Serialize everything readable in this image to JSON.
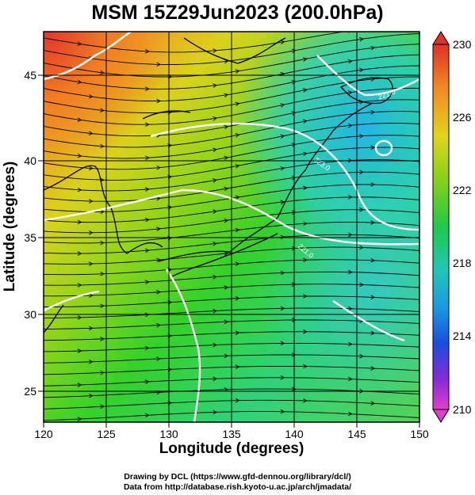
{
  "title": "MSM 15Z29Jun2023 (200.0hPa)",
  "x_axis": {
    "title": "Longitude (degrees)",
    "ticks": [
      "120",
      "125",
      "130",
      "135",
      "140",
      "145",
      "150"
    ]
  },
  "y_axis": {
    "title": "Latitude  (degrees)",
    "ticks": [
      "25",
      "30",
      "35",
      "40",
      "45"
    ]
  },
  "colorbar": {
    "labels": [
      "230",
      "226",
      "222",
      "218",
      "214",
      "210"
    ]
  },
  "contour_labels": [
    "221.0",
    "223.0",
    "221.0"
  ],
  "credits": [
    "Drawing by DCL (https://www.gfd-dennou.org/library/dcl/)",
    "Data from http://database.rish.kyoto-u.ac.jp/arch/jmadata/"
  ],
  "chart_data": {
    "type": "heatmap",
    "title": "MSM 15Z29Jun2023 (200.0hPa)",
    "xlabel": "Longitude (degrees)",
    "ylabel": "Latitude  (degrees)",
    "xlim": [
      120,
      150
    ],
    "ylim": [
      22.5,
      48
    ],
    "grid": true,
    "field_range": [
      210,
      230
    ],
    "colorbar_ticks": [
      210,
      214,
      218,
      222,
      226,
      230
    ],
    "overlays": [
      "streamlines",
      "coastlines",
      "white contour lines"
    ]
  }
}
